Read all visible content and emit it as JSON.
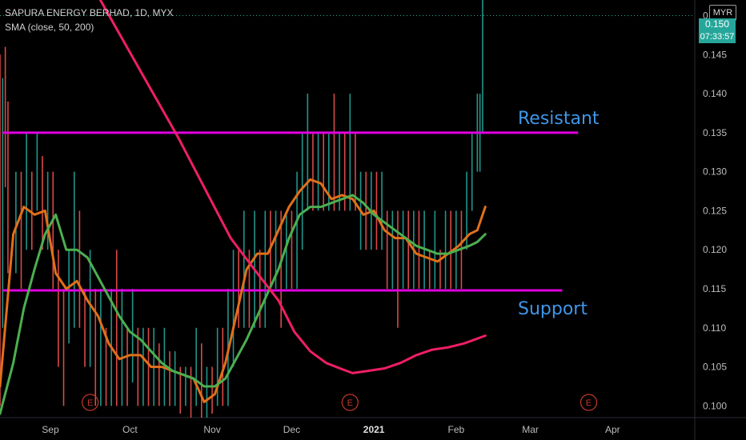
{
  "header": {
    "title": "SAPURA ENERGY BERHAD, 1D, MYX",
    "indicator": "SMA (close, 50, 200)"
  },
  "price_scale": {
    "currency_button": "MYR",
    "current_price": "0.150",
    "countdown": "07:33:57"
  },
  "annotations": {
    "resistant": "Resistant",
    "support": "Support"
  },
  "colors": {
    "up_bar": "#26a69a",
    "down_bar": "#ef5350",
    "sma_fast": "#e0701a",
    "sma_50": "#4caf50",
    "sma_200": "#ef1f63",
    "level_lines": "#e000e0",
    "annotation_text": "#3f96e8",
    "earnings_marker": "#c0392b"
  },
  "chart_data": {
    "type": "line",
    "title": "SAPURA ENERGY BERHAD, 1D, MYX",
    "ylim": [
      0.0985,
      0.152
    ],
    "y_ticks": [
      "0.100",
      "0.105",
      "0.110",
      "0.115",
      "0.120",
      "0.125",
      "0.130",
      "0.135",
      "0.140",
      "0.145",
      "0.150"
    ],
    "x_ticks": [
      {
        "label": "Sep",
        "day": 22
      },
      {
        "label": "Oct",
        "day": 52
      },
      {
        "label": "Nov",
        "day": 83
      },
      {
        "label": "Dec",
        "day": 113
      },
      {
        "label": "2021",
        "day": 144,
        "bold": true
      },
      {
        "label": "Feb",
        "day": 175
      },
      {
        "label": "Mar",
        "day": 203
      },
      {
        "label": "Apr",
        "day": 234
      }
    ],
    "x_range_days": [
      3,
      265
    ],
    "levels": [
      {
        "name": "Resistant",
        "value": 0.135,
        "from_day": 4,
        "to_day": 221
      },
      {
        "name": "Support",
        "value": 0.1148,
        "from_day": 4,
        "to_day": 215
      }
    ],
    "earnings_markers": {
      "label": "E",
      "days": [
        37,
        135,
        225
      ]
    },
    "series": [
      {
        "key": "sma_fast",
        "x": [
          3,
          8,
          12,
          16,
          20,
          24,
          28,
          32,
          36,
          40,
          44,
          48,
          52,
          56,
          60,
          64,
          68,
          72,
          76,
          80,
          84,
          88,
          92,
          96,
          100,
          104,
          108,
          112,
          116,
          120,
          124,
          128,
          132,
          136,
          140,
          144,
          148,
          152,
          156,
          160,
          164,
          168,
          172,
          176,
          180,
          183,
          186
        ],
        "values": [
          0.1025,
          0.122,
          0.1255,
          0.1245,
          0.125,
          0.117,
          0.115,
          0.116,
          0.1135,
          0.1115,
          0.108,
          0.106,
          0.1065,
          0.1065,
          0.105,
          0.105,
          0.1045,
          0.104,
          0.1035,
          0.1005,
          0.1015,
          0.1055,
          0.1115,
          0.1175,
          0.1195,
          0.1195,
          0.1225,
          0.1255,
          0.1275,
          0.129,
          0.1285,
          0.1265,
          0.127,
          0.1265,
          0.1245,
          0.125,
          0.1225,
          0.1215,
          0.1215,
          0.1195,
          0.119,
          0.1185,
          0.1195,
          0.1205,
          0.122,
          0.1225,
          0.1255
        ]
      },
      {
        "key": "sma_50",
        "x": [
          3,
          8,
          12,
          16,
          20,
          24,
          28,
          32,
          36,
          40,
          44,
          48,
          52,
          56,
          60,
          64,
          68,
          72,
          76,
          80,
          84,
          88,
          92,
          96,
          100,
          104,
          108,
          112,
          116,
          120,
          124,
          128,
          132,
          136,
          140,
          144,
          148,
          152,
          156,
          160,
          164,
          168,
          172,
          176,
          180,
          183,
          186
        ],
        "values": [
          0.099,
          0.1055,
          0.1125,
          0.1175,
          0.122,
          0.1245,
          0.12,
          0.12,
          0.119,
          0.1165,
          0.114,
          0.1115,
          0.1095,
          0.1085,
          0.107,
          0.1055,
          0.1045,
          0.104,
          0.1035,
          0.1025,
          0.1025,
          0.1035,
          0.106,
          0.1085,
          0.1115,
          0.1145,
          0.1175,
          0.1215,
          0.1245,
          0.1255,
          0.1255,
          0.126,
          0.1265,
          0.127,
          0.126,
          0.1245,
          0.1235,
          0.1225,
          0.1215,
          0.1205,
          0.12,
          0.1195,
          0.1195,
          0.12,
          0.1205,
          0.121,
          0.122
        ]
      },
      {
        "key": "sma_200",
        "x": [
          40,
          50,
          60,
          70,
          80,
          90,
          100,
          108,
          114,
          120,
          126,
          132,
          136,
          142,
          148,
          154,
          160,
          166,
          172,
          178,
          186
        ],
        "values": [
          0.1525,
          0.1465,
          0.1405,
          0.1345,
          0.128,
          0.1215,
          0.117,
          0.1135,
          0.1095,
          0.107,
          0.1055,
          0.1047,
          0.1042,
          0.1045,
          0.1048,
          0.1055,
          0.1065,
          0.1072,
          0.1075,
          0.108,
          0.109
        ]
      }
    ],
    "bars": [
      {
        "day": 3,
        "high": 0.145,
        "low": 0.1,
        "close": 0.117,
        "up": false
      },
      {
        "day": 4,
        "high": 0.142,
        "low": 0.11,
        "close": 0.135,
        "up": true
      },
      {
        "day": 5,
        "high": 0.146,
        "low": 0.128,
        "close": 0.13,
        "up": false
      },
      {
        "day": 6,
        "high": 0.139,
        "low": 0.117,
        "close": 0.12,
        "up": false
      },
      {
        "day": 9,
        "high": 0.13,
        "low": 0.117,
        "close": 0.123,
        "up": true
      },
      {
        "day": 11,
        "high": 0.13,
        "low": 0.115,
        "close": 0.12,
        "up": false
      },
      {
        "day": 13,
        "high": 0.135,
        "low": 0.12,
        "close": 0.125,
        "up": true
      },
      {
        "day": 15,
        "high": 0.13,
        "low": 0.12,
        "close": 0.125,
        "up": false
      },
      {
        "day": 17,
        "high": 0.135,
        "low": 0.125,
        "close": 0.13,
        "up": true
      },
      {
        "day": 19,
        "high": 0.132,
        "low": 0.12,
        "close": 0.125,
        "up": false
      },
      {
        "day": 21,
        "high": 0.13,
        "low": 0.12,
        "close": 0.128,
        "up": true
      },
      {
        "day": 23,
        "high": 0.13,
        "low": 0.115,
        "close": 0.118,
        "up": false
      },
      {
        "day": 25,
        "high": 0.12,
        "low": 0.105,
        "close": 0.11,
        "up": false
      },
      {
        "day": 27,
        "high": 0.115,
        "low": 0.1,
        "close": 0.105,
        "up": false
      },
      {
        "day": 29,
        "high": 0.12,
        "low": 0.108,
        "close": 0.115,
        "up": true
      },
      {
        "day": 31,
        "high": 0.13,
        "low": 0.11,
        "close": 0.12,
        "up": true
      },
      {
        "day": 33,
        "high": 0.125,
        "low": 0.11,
        "close": 0.115,
        "up": false
      },
      {
        "day": 35,
        "high": 0.115,
        "low": 0.105,
        "close": 0.11,
        "up": false
      },
      {
        "day": 37,
        "high": 0.12,
        "low": 0.105,
        "close": 0.113,
        "up": true
      },
      {
        "day": 39,
        "high": 0.115,
        "low": 0.1,
        "close": 0.105,
        "up": false
      },
      {
        "day": 41,
        "high": 0.115,
        "low": 0.1,
        "close": 0.11,
        "up": true
      },
      {
        "day": 43,
        "high": 0.11,
        "low": 0.1,
        "close": 0.105,
        "up": false
      },
      {
        "day": 45,
        "high": 0.115,
        "low": 0.1,
        "close": 0.11,
        "up": true
      },
      {
        "day": 47,
        "high": 0.12,
        "low": 0.1,
        "close": 0.103,
        "up": false
      },
      {
        "day": 49,
        "high": 0.115,
        "low": 0.1,
        "close": 0.11,
        "up": true
      },
      {
        "day": 51,
        "high": 0.11,
        "low": 0.1,
        "close": 0.105,
        "up": false
      },
      {
        "day": 53,
        "high": 0.115,
        "low": 0.103,
        "close": 0.11,
        "up": true
      },
      {
        "day": 55,
        "high": 0.11,
        "low": 0.1,
        "close": 0.105,
        "up": false
      },
      {
        "day": 57,
        "high": 0.11,
        "low": 0.1,
        "close": 0.105,
        "up": true
      },
      {
        "day": 59,
        "high": 0.11,
        "low": 0.1,
        "close": 0.103,
        "up": false
      },
      {
        "day": 61,
        "high": 0.11,
        "low": 0.1,
        "close": 0.105,
        "up": true
      },
      {
        "day": 63,
        "high": 0.108,
        "low": 0.1,
        "close": 0.103,
        "up": false
      },
      {
        "day": 65,
        "high": 0.11,
        "low": 0.1,
        "close": 0.105,
        "up": true
      },
      {
        "day": 67,
        "high": 0.107,
        "low": 0.1,
        "close": 0.102,
        "up": false
      },
      {
        "day": 69,
        "high": 0.107,
        "low": 0.1,
        "close": 0.104,
        "up": true
      },
      {
        "day": 71,
        "high": 0.105,
        "low": 0.099,
        "close": 0.1,
        "up": false
      },
      {
        "day": 73,
        "high": 0.105,
        "low": 0.1,
        "close": 0.103,
        "up": true
      },
      {
        "day": 75,
        "high": 0.105,
        "low": 0.0985,
        "close": 0.1,
        "up": false
      },
      {
        "day": 77,
        "high": 0.11,
        "low": 0.1,
        "close": 0.105,
        "up": true
      },
      {
        "day": 79,
        "high": 0.108,
        "low": 0.0985,
        "close": 0.1,
        "up": false
      },
      {
        "day": 81,
        "high": 0.105,
        "low": 0.0985,
        "close": 0.1,
        "up": true
      },
      {
        "day": 83,
        "high": 0.105,
        "low": 0.099,
        "close": 0.1,
        "up": false
      },
      {
        "day": 85,
        "high": 0.11,
        "low": 0.1,
        "close": 0.105,
        "up": true
      },
      {
        "day": 87,
        "high": 0.11,
        "low": 0.1,
        "close": 0.103,
        "up": false
      },
      {
        "day": 89,
        "high": 0.115,
        "low": 0.1,
        "close": 0.11,
        "up": true
      },
      {
        "day": 91,
        "high": 0.12,
        "low": 0.105,
        "close": 0.115,
        "up": true
      },
      {
        "day": 93,
        "high": 0.12,
        "low": 0.11,
        "close": 0.113,
        "up": false
      },
      {
        "day": 95,
        "high": 0.125,
        "low": 0.11,
        "close": 0.12,
        "up": true
      },
      {
        "day": 97,
        "high": 0.12,
        "low": 0.11,
        "close": 0.115,
        "up": false
      },
      {
        "day": 99,
        "high": 0.125,
        "low": 0.11,
        "close": 0.12,
        "up": true
      },
      {
        "day": 101,
        "high": 0.12,
        "low": 0.11,
        "close": 0.115,
        "up": false
      },
      {
        "day": 103,
        "high": 0.125,
        "low": 0.11,
        "close": 0.12,
        "up": true
      },
      {
        "day": 105,
        "high": 0.125,
        "low": 0.115,
        "close": 0.12,
        "up": false
      },
      {
        "day": 107,
        "high": 0.125,
        "low": 0.115,
        "close": 0.122,
        "up": true
      },
      {
        "day": 109,
        "high": 0.125,
        "low": 0.11,
        "close": 0.115,
        "up": false
      },
      {
        "day": 111,
        "high": 0.125,
        "low": 0.115,
        "close": 0.12,
        "up": true
      },
      {
        "day": 113,
        "high": 0.125,
        "low": 0.115,
        "close": 0.118,
        "up": false
      },
      {
        "day": 115,
        "high": 0.13,
        "low": 0.115,
        "close": 0.125,
        "up": true
      },
      {
        "day": 117,
        "high": 0.135,
        "low": 0.12,
        "close": 0.13,
        "up": true
      },
      {
        "day": 119,
        "high": 0.14,
        "low": 0.125,
        "close": 0.135,
        "up": true
      },
      {
        "day": 121,
        "high": 0.135,
        "low": 0.125,
        "close": 0.128,
        "up": false
      },
      {
        "day": 123,
        "high": 0.135,
        "low": 0.125,
        "close": 0.13,
        "up": true
      },
      {
        "day": 125,
        "high": 0.135,
        "low": 0.125,
        "close": 0.128,
        "up": false
      },
      {
        "day": 127,
        "high": 0.135,
        "low": 0.125,
        "close": 0.13,
        "up": true
      },
      {
        "day": 129,
        "high": 0.14,
        "low": 0.125,
        "close": 0.13,
        "up": false
      },
      {
        "day": 131,
        "high": 0.135,
        "low": 0.125,
        "close": 0.13,
        "up": true
      },
      {
        "day": 133,
        "high": 0.135,
        "low": 0.125,
        "close": 0.128,
        "up": false
      },
      {
        "day": 135,
        "high": 0.14,
        "low": 0.125,
        "close": 0.13,
        "up": true
      },
      {
        "day": 137,
        "high": 0.135,
        "low": 0.125,
        "close": 0.128,
        "up": false
      },
      {
        "day": 139,
        "high": 0.13,
        "low": 0.12,
        "close": 0.125,
        "up": true
      },
      {
        "day": 141,
        "high": 0.13,
        "low": 0.12,
        "close": 0.123,
        "up": false
      },
      {
        "day": 143,
        "high": 0.13,
        "low": 0.12,
        "close": 0.125,
        "up": true
      },
      {
        "day": 145,
        "high": 0.13,
        "low": 0.12,
        "close": 0.123,
        "up": false
      },
      {
        "day": 147,
        "high": 0.13,
        "low": 0.12,
        "close": 0.125,
        "up": true
      },
      {
        "day": 149,
        "high": 0.125,
        "low": 0.115,
        "close": 0.12,
        "up": false
      },
      {
        "day": 151,
        "high": 0.125,
        "low": 0.115,
        "close": 0.12,
        "up": true
      },
      {
        "day": 153,
        "high": 0.125,
        "low": 0.11,
        "close": 0.12,
        "up": false
      },
      {
        "day": 155,
        "high": 0.125,
        "low": 0.115,
        "close": 0.12,
        "up": true
      },
      {
        "day": 157,
        "high": 0.125,
        "low": 0.115,
        "close": 0.12,
        "up": false
      },
      {
        "day": 159,
        "high": 0.125,
        "low": 0.115,
        "close": 0.12,
        "up": true
      },
      {
        "day": 161,
        "high": 0.125,
        "low": 0.115,
        "close": 0.12,
        "up": false
      },
      {
        "day": 163,
        "high": 0.125,
        "low": 0.115,
        "close": 0.12,
        "up": true
      },
      {
        "day": 165,
        "high": 0.12,
        "low": 0.115,
        "close": 0.117,
        "up": false
      },
      {
        "day": 167,
        "high": 0.125,
        "low": 0.115,
        "close": 0.12,
        "up": true
      },
      {
        "day": 169,
        "high": 0.12,
        "low": 0.115,
        "close": 0.117,
        "up": false
      },
      {
        "day": 171,
        "high": 0.125,
        "low": 0.115,
        "close": 0.12,
        "up": true
      },
      {
        "day": 173,
        "high": 0.125,
        "low": 0.115,
        "close": 0.12,
        "up": false
      },
      {
        "day": 175,
        "high": 0.125,
        "low": 0.115,
        "close": 0.12,
        "up": true
      },
      {
        "day": 177,
        "high": 0.125,
        "low": 0.115,
        "close": 0.12,
        "up": false
      },
      {
        "day": 179,
        "high": 0.13,
        "low": 0.12,
        "close": 0.125,
        "up": true
      },
      {
        "day": 181,
        "high": 0.135,
        "low": 0.125,
        "close": 0.13,
        "up": true
      },
      {
        "day": 183,
        "high": 0.14,
        "low": 0.13,
        "close": 0.135,
        "up": true
      },
      {
        "day": 184,
        "high": 0.14,
        "low": 0.13,
        "close": 0.138,
        "up": true
      },
      {
        "day": 185,
        "high": 0.152,
        "low": 0.135,
        "close": 0.15,
        "up": true
      }
    ]
  }
}
